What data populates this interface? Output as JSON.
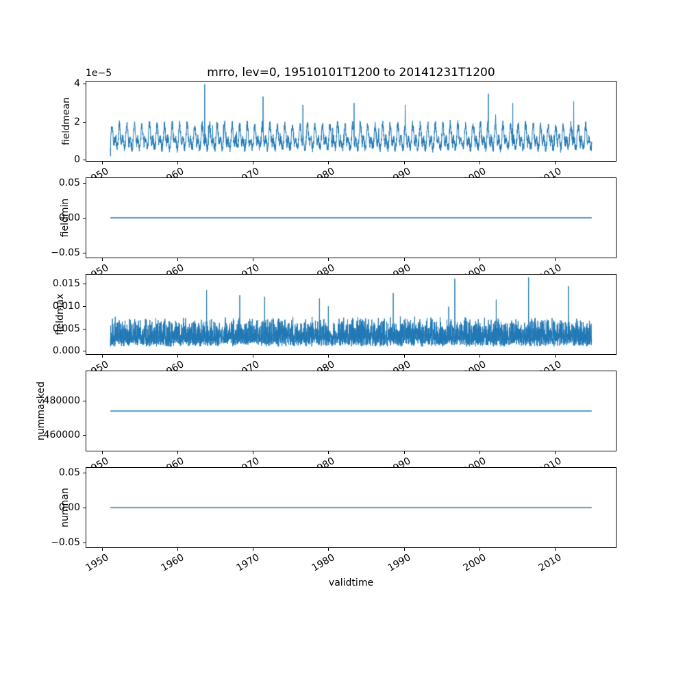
{
  "figure": {
    "title": "mrro, lev=0, 19510101T1200 to 20141231T1200",
    "xlabel": "validtime",
    "background": "#ffffff",
    "line_color": "#1f77b4",
    "xticks": [
      1950,
      1960,
      1970,
      1980,
      1990,
      2000,
      2010
    ],
    "xlim": [
      1947.8,
      2018.2
    ]
  },
  "chart_data": [
    {
      "id": "fieldmean",
      "type": "line",
      "title": "mrro, lev=0, 19510101T1200 to 20141231T1200",
      "ylabel": "fieldmean",
      "offset_text": "1e−5",
      "xlim": [
        1947.8,
        2018.2
      ],
      "ylim": [
        -1e-06,
        4.15e-05
      ],
      "yticks": [
        0,
        2e-05,
        4e-05
      ],
      "ytick_labels": [
        "0",
        "2",
        "4"
      ],
      "x_range": [
        1951.0,
        2015.0
      ],
      "series": {
        "kind": "seasonal_noise",
        "seed": 7,
        "dt": 0.02,
        "base": 8.5e-06,
        "seasonal_amp": 9e-06,
        "semiannual_amp": 2.5e-06,
        "noise": 2.5e-06,
        "clip": [
          1e-06,
          4e-05
        ],
        "spikes": [
          [
            1951.02,
            1.5e-06
          ],
          [
            1963.55,
            4e-05
          ],
          [
            1971.3,
            3.35e-05
          ],
          [
            1976.6,
            2.9e-05
          ],
          [
            1983.4,
            3e-05
          ],
          [
            1990.2,
            2.9e-05
          ],
          [
            2001.25,
            3.5e-05
          ],
          [
            2004.5,
            3e-05
          ],
          [
            2012.6,
            3.1e-05
          ]
        ]
      }
    },
    {
      "id": "fieldmin",
      "type": "line",
      "ylabel": "fieldmin",
      "xlim": [
        1947.8,
        2018.2
      ],
      "ylim": [
        -0.0577,
        0.0577
      ],
      "yticks": [
        0.05,
        0.0,
        -0.05
      ],
      "ytick_labels": [
        "0.05",
        "0.00",
        "−0.05"
      ],
      "x_range": [
        1951.0,
        2015.0
      ],
      "series": {
        "kind": "constant",
        "value": 0.0
      }
    },
    {
      "id": "fieldmax",
      "type": "line",
      "ylabel": "fieldmax",
      "xlim": [
        1947.8,
        2018.2
      ],
      "ylim": [
        -0.0009,
        0.0172
      ],
      "yticks": [
        0.015,
        0.01,
        0.005,
        0.0
      ],
      "ytick_labels": [
        "0.015",
        "0.010",
        "0.005",
        "0.000"
      ],
      "x_range": [
        1951.0,
        2015.0
      ],
      "series": {
        "kind": "spiky_noise",
        "seed": 13,
        "dt": 0.015,
        "base": 0.0008,
        "tail": 0.0045,
        "jitter": 0.0025,
        "clip": [
          0.0004,
          0.0168
        ],
        "spikes": [
          [
            1963.8,
            0.0137
          ],
          [
            1968.2,
            0.0125
          ],
          [
            1971.5,
            0.0122
          ],
          [
            1978.8,
            0.0118
          ],
          [
            1988.6,
            0.013
          ],
          [
            1996.8,
            0.0163
          ],
          [
            2002.3,
            0.0115
          ],
          [
            2006.6,
            0.0166
          ],
          [
            2011.9,
            0.0146
          ]
        ]
      }
    },
    {
      "id": "nummasked",
      "type": "line",
      "ylabel": "nummasked",
      "xlim": [
        1947.8,
        2018.2
      ],
      "ylim": [
        450300,
        497700
      ],
      "yticks": [
        480000,
        460000
      ],
      "ytick_labels": [
        "480000",
        "460000"
      ],
      "x_range": [
        1951.0,
        2015.0
      ],
      "series": {
        "kind": "constant",
        "value": 474000
      }
    },
    {
      "id": "numnan",
      "type": "line",
      "ylabel": "numnan",
      "xlim": [
        1947.8,
        2018.2
      ],
      "ylim": [
        -0.0577,
        0.0577
      ],
      "yticks": [
        0.05,
        0.0,
        -0.05
      ],
      "ytick_labels": [
        "0.05",
        "0.00",
        "−0.05"
      ],
      "x_range": [
        1951.0,
        2015.0
      ],
      "series": {
        "kind": "constant",
        "value": 0.0
      }
    }
  ]
}
